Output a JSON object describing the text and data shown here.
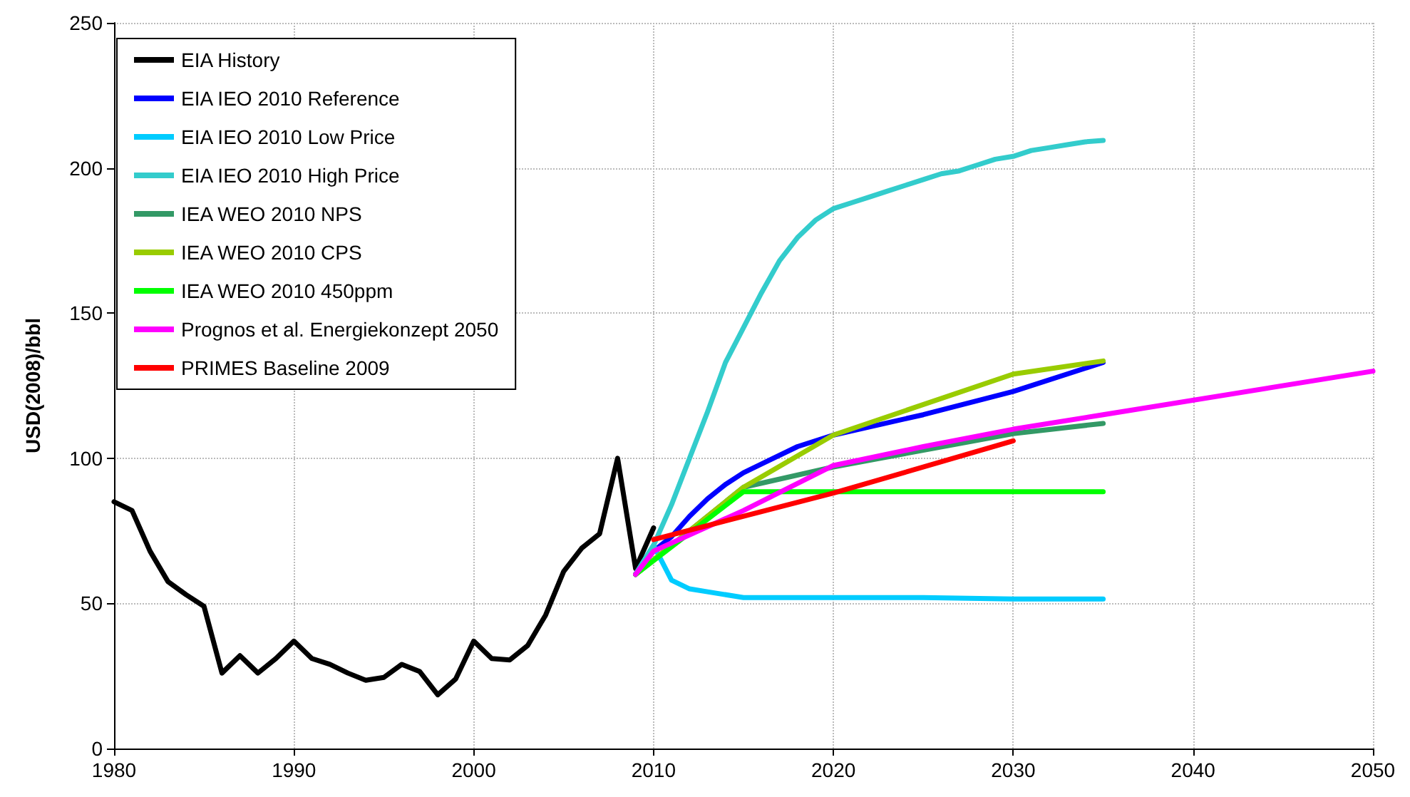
{
  "chart_data": {
    "type": "line",
    "ylabel": "USD(2008)/bbl",
    "xlim": [
      1980,
      2050
    ],
    "xticks": [
      1980,
      1990,
      2000,
      2010,
      2020,
      2030,
      2040,
      2050
    ],
    "ylim": [
      0,
      250
    ],
    "yticks": [
      0,
      50,
      100,
      150,
      200,
      250
    ],
    "grid": true,
    "legend": "top left",
    "marker": "none",
    "line_style": "solid",
    "series": [
      {
        "name": "EIA History",
        "color": "#000000",
        "x": [
          1980,
          1981,
          1982,
          1983,
          1984,
          1985,
          1986,
          1987,
          1988,
          1989,
          1990,
          1991,
          1992,
          1993,
          1994,
          1995,
          1996,
          1997,
          1998,
          1999,
          2000,
          2001,
          2002,
          2003,
          2004,
          2005,
          2006,
          2007,
          2008,
          2009,
          2010
        ],
        "values": [
          85,
          82,
          68,
          57.5,
          53,
          49,
          26,
          32,
          26,
          31,
          37,
          31,
          29,
          26,
          23.5,
          24.5,
          29,
          26.5,
          18.5,
          24,
          37,
          31,
          30.5,
          35.5,
          46,
          61,
          69,
          74,
          100,
          62,
          76
        ]
      },
      {
        "name": "EIA IEO 2010 Reference",
        "color": "#0000ff",
        "x": [
          2009,
          2010,
          2011,
          2012,
          2013,
          2014,
          2015,
          2016,
          2018,
          2020,
          2025,
          2030,
          2035
        ],
        "values": [
          60,
          68,
          73,
          80,
          86,
          91,
          95,
          98,
          104,
          108,
          115,
          123,
          133
        ]
      },
      {
        "name": "EIA IEO 2010 Low Price",
        "color": "#00ccff",
        "x": [
          2009,
          2010,
          2011,
          2012,
          2013,
          2015,
          2020,
          2025,
          2030,
          2035
        ],
        "values": [
          60,
          70,
          58,
          55,
          54,
          52,
          52,
          52,
          51.5,
          51.5
        ]
      },
      {
        "name": "EIA IEO 2010 High Price",
        "color": "#33cccc",
        "x": [
          2009,
          2010,
          2011,
          2012,
          2013,
          2014,
          2015,
          2016,
          2017,
          2018,
          2019,
          2020,
          2021,
          2022,
          2023,
          2024,
          2025,
          2026,
          2027,
          2028,
          2029,
          2030,
          2031,
          2032,
          2033,
          2034,
          2035
        ],
        "values": [
          60,
          70,
          84,
          100,
          116,
          133,
          145,
          157,
          168,
          176,
          182,
          186,
          188,
          190,
          192,
          194,
          196,
          198,
          199,
          201,
          203,
          204,
          206,
          207,
          208,
          209,
          209.5
        ]
      },
      {
        "name": "IEA WEO 2010 NPS",
        "color": "#339966",
        "x": [
          2009,
          2015,
          2020,
          2030,
          2035
        ],
        "values": [
          60,
          90,
          97,
          108.5,
          112
        ]
      },
      {
        "name": "IEA WEO 2010 CPS",
        "color": "#99cc00",
        "x": [
          2009,
          2015,
          2020,
          2030,
          2035
        ],
        "values": [
          60,
          90,
          108,
          129,
          133.5
        ]
      },
      {
        "name": "IEA WEO 2010 450ppm",
        "color": "#00ff00",
        "x": [
          2009,
          2015,
          2035
        ],
        "values": [
          60,
          88.5,
          88.5
        ]
      },
      {
        "name": "Prognos et al. Energiekonzept 2050",
        "color": "#ff00ff",
        "x": [
          2009,
          2010,
          2015,
          2020,
          2025,
          2030,
          2035,
          2050
        ],
        "values": [
          60,
          68,
          82,
          97.5,
          104,
          110,
          115,
          130
        ]
      },
      {
        "name": "PRIMES Baseline 2009",
        "color": "#ff0000",
        "x": [
          2010,
          2020,
          2030
        ],
        "values": [
          72,
          88,
          106
        ]
      }
    ]
  }
}
